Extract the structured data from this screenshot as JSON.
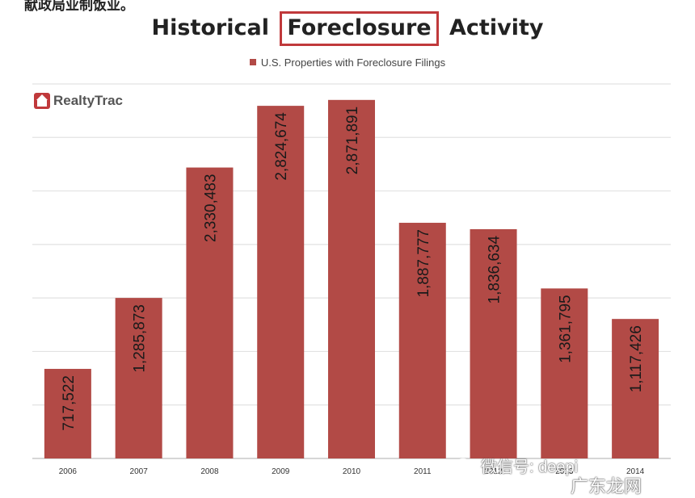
{
  "top_crop_text": "献政局业制饭业。",
  "chart_data": {
    "type": "bar",
    "title_parts": [
      "Historical",
      "Foreclosure",
      "Activity"
    ],
    "legend": "U.S. Properties with Foreclosure Filings",
    "logo": "RealtyTrac",
    "categories": [
      "2006",
      "2007",
      "2008",
      "2009",
      "2010",
      "2011",
      "2012",
      "2013",
      "2014"
    ],
    "values": [
      717522,
      1285873,
      2330483,
      2824674,
      2871891,
      1887777,
      1836634,
      1361795,
      1117426
    ],
    "value_labels": [
      "717,522",
      "1,285,873",
      "2,330,483",
      "2,824,674",
      "2,871,891",
      "1,887,777",
      "1,836,634",
      "1,361,795",
      "1,117,426"
    ],
    "ylim": [
      0,
      3000000
    ],
    "grid": true,
    "bar_color": "#b24a46",
    "highlight_color": "#c0393b"
  },
  "watermark": {
    "text": "微信号: deepi",
    "brand": "广东龙网"
  }
}
